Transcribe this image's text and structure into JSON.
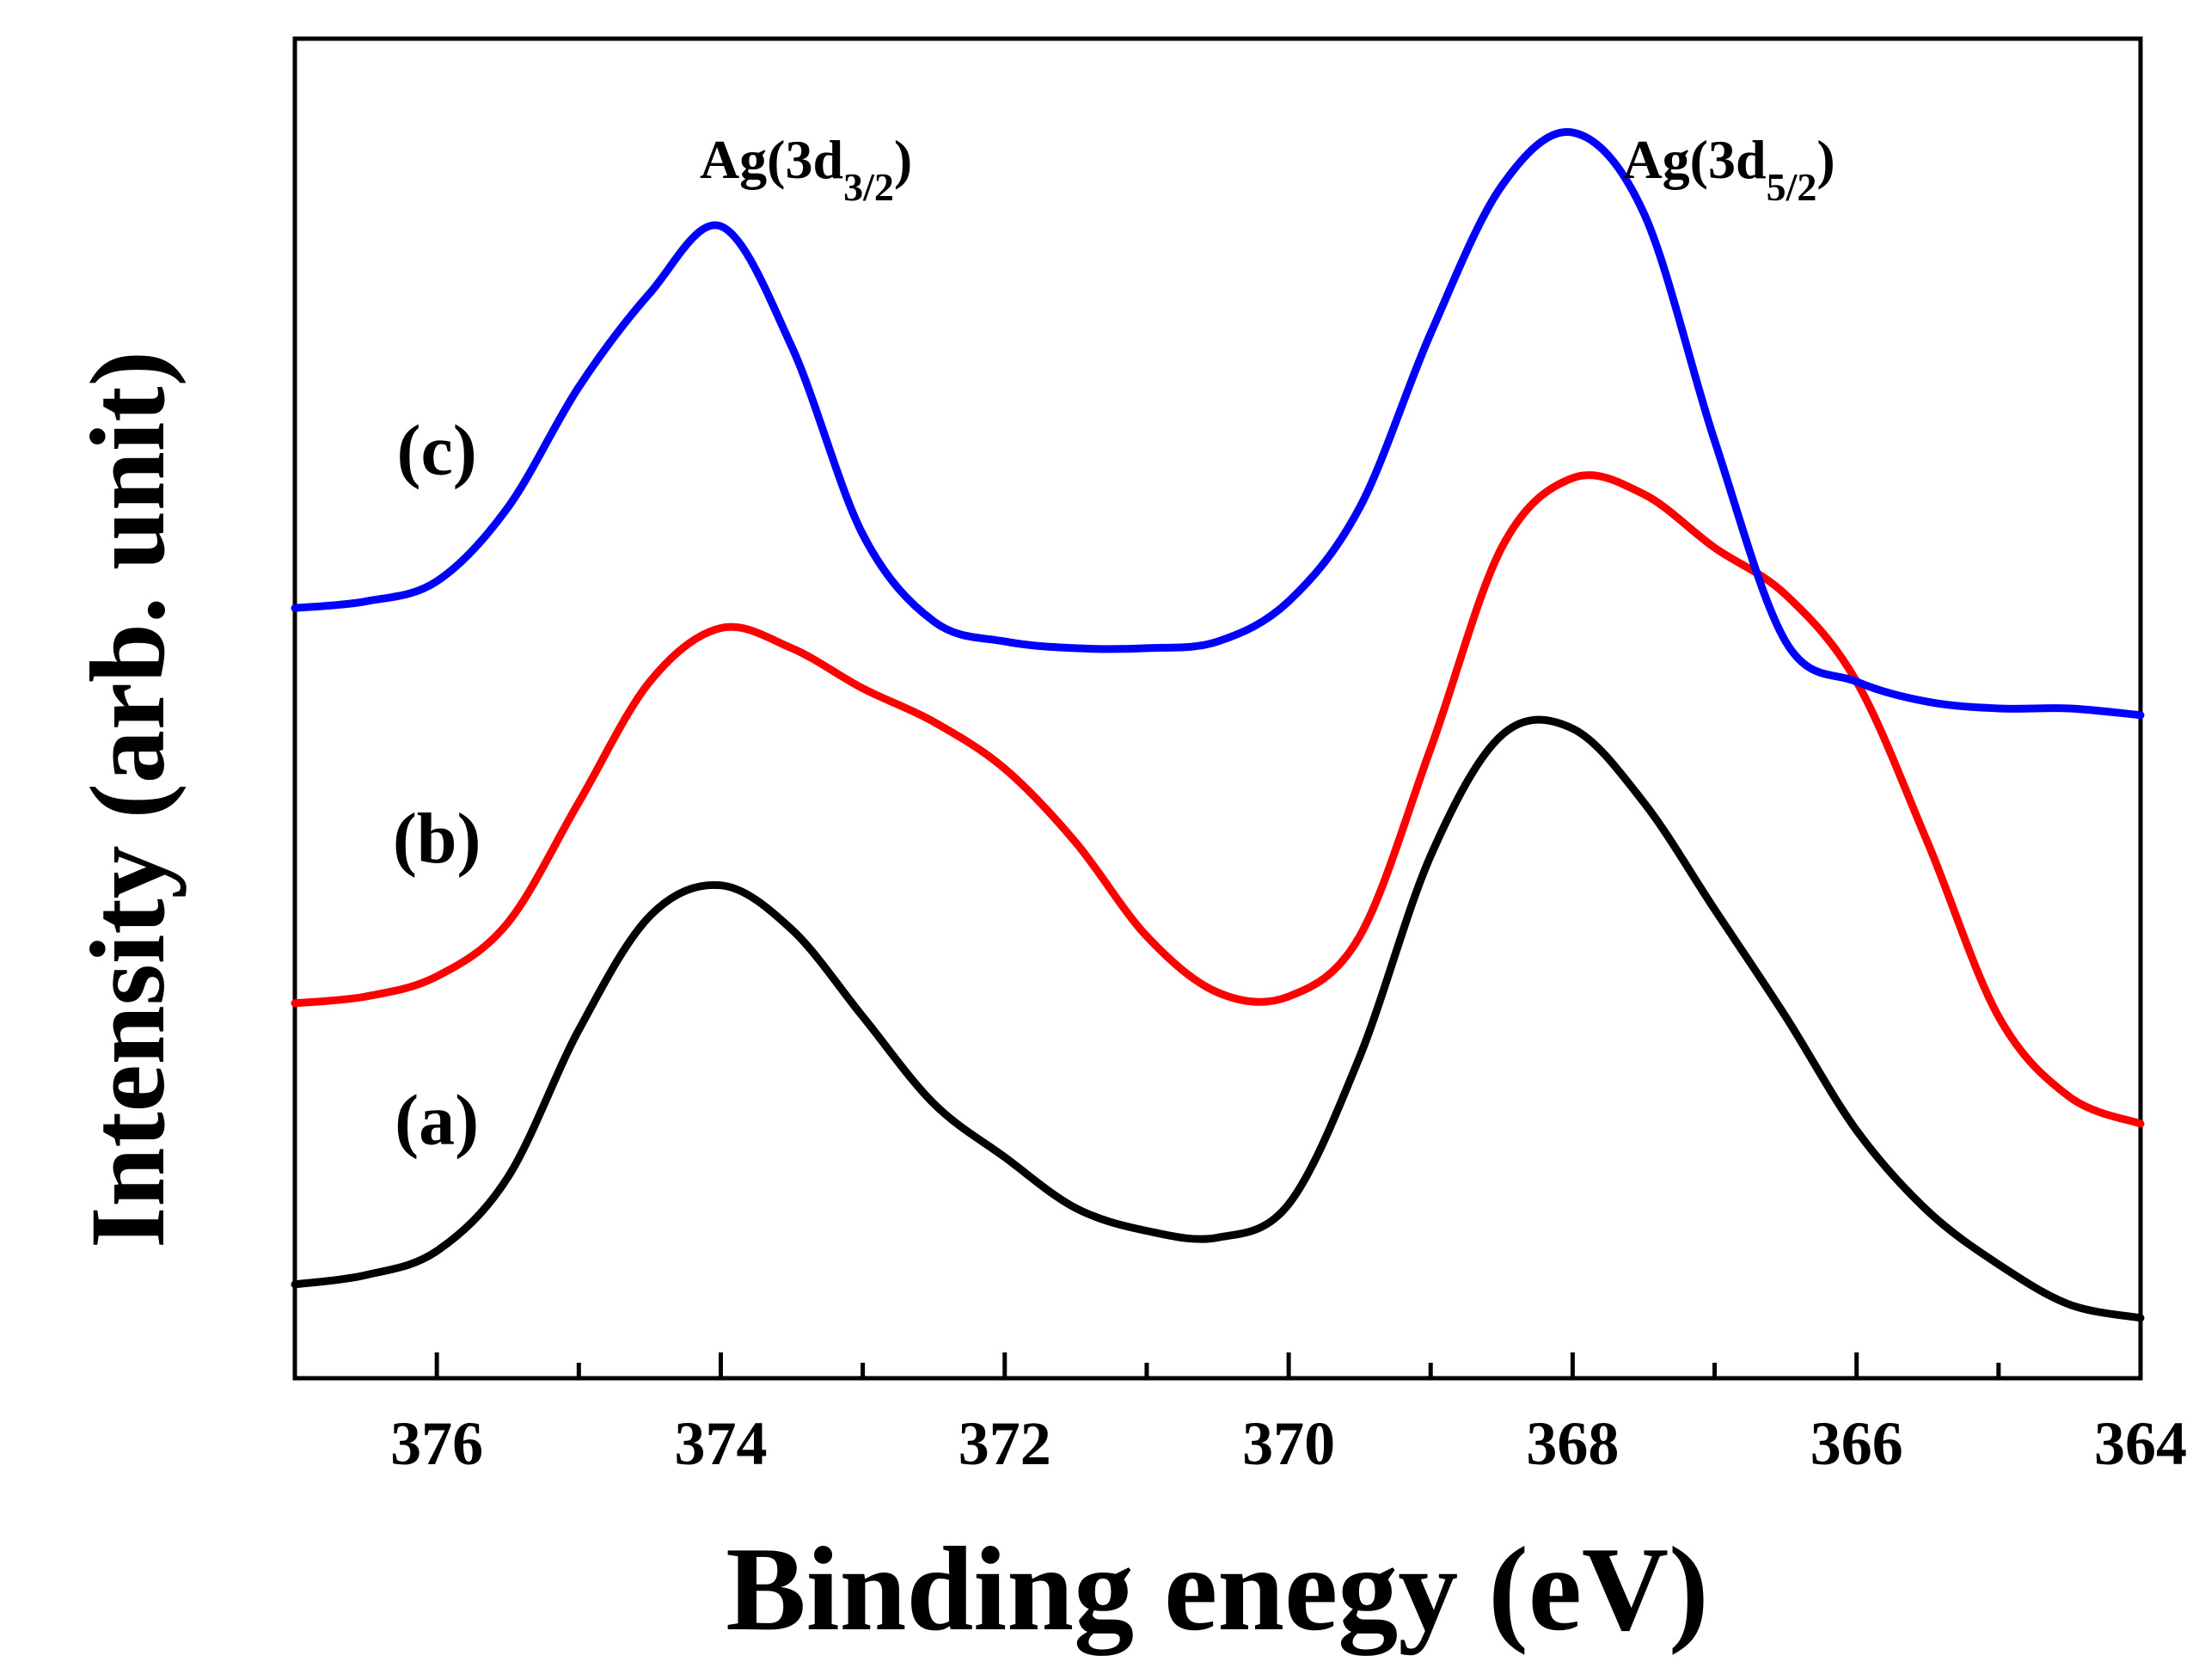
{
  "chart_data": {
    "type": "line",
    "xlabel": "Binding enegy (eV)",
    "ylabel": "Intensity (arb. unit)",
    "xlim": [
      377,
      364
    ],
    "ylim": [
      0,
      1
    ],
    "xticks": [
      376,
      374,
      372,
      370,
      368,
      366,
      364
    ],
    "yticks": [],
    "peak_annotations": [
      {
        "name": "peak-3d32",
        "base": "Ag(3d",
        "sub": "3/2",
        "tail": ")",
        "x": 373.4,
        "y": 0.896
      },
      {
        "name": "peak-3d52",
        "base": "Ag(3d",
        "sub": "5/2",
        "tail": ")",
        "x": 366.9,
        "y": 0.896
      }
    ],
    "series": [
      {
        "name": "(a)",
        "color": "#000000",
        "label_pos": {
          "x": 376.0,
          "y": 0.175
        },
        "x": [
          377,
          376.5,
          376,
          375.5,
          375,
          374.5,
          374,
          373.5,
          373,
          372.5,
          372,
          371.5,
          371,
          370.5,
          370,
          369.5,
          369,
          368.5,
          368,
          367.5,
          367,
          366.5,
          366,
          365.5,
          365,
          364.5,
          364
        ],
        "y": [
          0.07,
          0.077,
          0.095,
          0.15,
          0.26,
          0.345,
          0.368,
          0.335,
          0.27,
          0.205,
          0.165,
          0.127,
          0.11,
          0.105,
          0.13,
          0.24,
          0.39,
          0.48,
          0.485,
          0.43,
          0.35,
          0.27,
          0.185,
          0.125,
          0.085,
          0.055,
          0.045
        ]
      },
      {
        "name": "(b)",
        "color": "#ff0000",
        "label_pos": {
          "x": 376.0,
          "y": 0.385
        },
        "x": [
          377,
          376.5,
          376,
          375.5,
          375,
          374.5,
          374,
          373.5,
          373,
          372.5,
          372,
          371.5,
          371,
          370.5,
          370,
          369.5,
          369,
          368.5,
          368,
          367.5,
          367,
          366.5,
          366,
          365.5,
          365,
          364.5,
          364
        ],
        "y": [
          0.28,
          0.285,
          0.3,
          0.34,
          0.43,
          0.52,
          0.56,
          0.545,
          0.515,
          0.49,
          0.455,
          0.4,
          0.33,
          0.288,
          0.285,
          0.33,
          0.47,
          0.62,
          0.672,
          0.66,
          0.62,
          0.585,
          0.52,
          0.4,
          0.27,
          0.21,
          0.19
        ]
      },
      {
        "name": "(c)",
        "color": "#0000ff",
        "label_pos": {
          "x": 376.0,
          "y": 0.675
        },
        "x": [
          377,
          376.5,
          376,
          375.5,
          375,
          374.5,
          374,
          373.5,
          373,
          372.5,
          372,
          371.5,
          371,
          370.5,
          370,
          369.5,
          369,
          368.5,
          368,
          367.5,
          367,
          366.5,
          366,
          365.5,
          365,
          364.5,
          364
        ],
        "y": [
          0.575,
          0.58,
          0.595,
          0.65,
          0.74,
          0.81,
          0.86,
          0.77,
          0.63,
          0.565,
          0.55,
          0.545,
          0.545,
          0.55,
          0.58,
          0.65,
          0.78,
          0.89,
          0.93,
          0.87,
          0.7,
          0.55,
          0.52,
          0.505,
          0.5,
          0.5,
          0.495
        ]
      }
    ]
  }
}
